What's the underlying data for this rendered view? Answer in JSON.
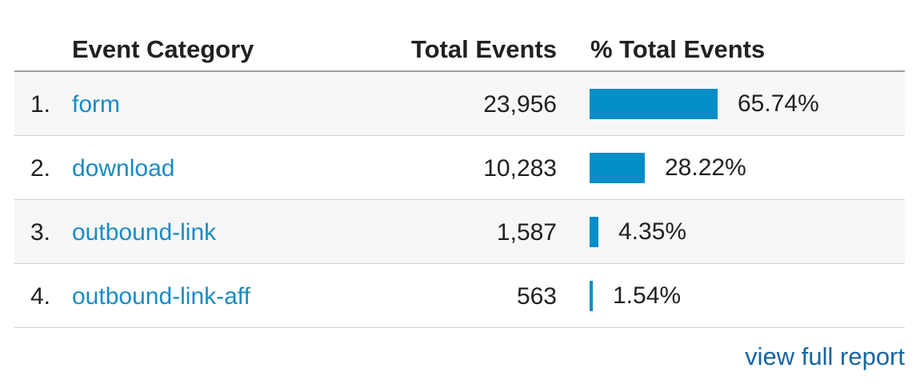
{
  "table": {
    "headers": {
      "category": "Event Category",
      "total_events": "Total Events",
      "pct_total_events": "% Total Events"
    },
    "rows": [
      {
        "rank": "1.",
        "category": "form",
        "total_events": "23,956",
        "pct": "65.74%",
        "pct_value": 65.74
      },
      {
        "rank": "2.",
        "category": "download",
        "total_events": "10,283",
        "pct": "28.22%",
        "pct_value": 28.22
      },
      {
        "rank": "3.",
        "category": "outbound-link",
        "total_events": "1,587",
        "pct": "4.35%",
        "pct_value": 4.35
      },
      {
        "rank": "4.",
        "category": "outbound-link-aff",
        "total_events": "563",
        "pct": "1.54%",
        "pct_value": 1.54
      }
    ]
  },
  "footer": {
    "view_full_report": "view full report"
  },
  "colors": {
    "bar": "#058dc7",
    "link": "#1a8bc1",
    "footer_link": "#1565a3",
    "row_alt_bg": "#f7f7f7"
  }
}
